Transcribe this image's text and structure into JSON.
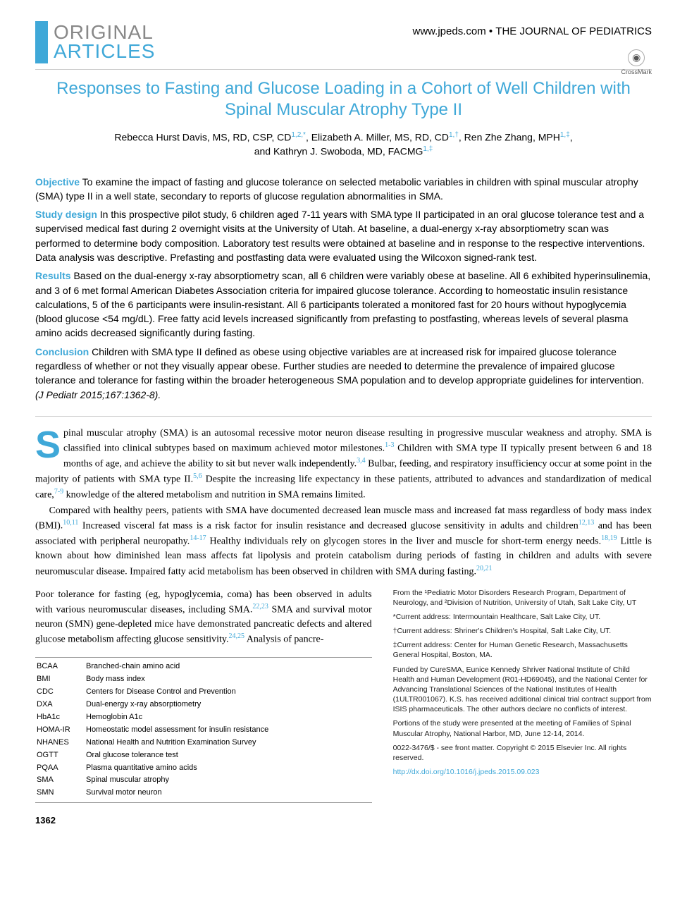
{
  "header": {
    "category_line1": "ORIGINAL",
    "category_line2": "ARTICLES",
    "url": "www.jpeds.com",
    "separator": " • ",
    "journal": "THE JOURNAL OF PEDIATRICS",
    "crossmark": "CrossMark"
  },
  "title": "Responses to Fasting and Glucose Loading in a Cohort of Well Children with Spinal Muscular Atrophy Type II",
  "authors_line1": "Rebecca Hurst Davis, MS, RD, CSP, CD",
  "authors_sup1": "1,2,*",
  "authors_sep1": ", Elizabeth A. Miller, MS, RD, CD",
  "authors_sup2": "1,†",
  "authors_sep2": ", Ren Zhe Zhang, MPH",
  "authors_sup3": "1,‡",
  "authors_sep3": ",",
  "authors_line2": "and Kathryn J. Swoboda, MD, FACMG",
  "authors_sup4": "1,‡",
  "abstract": {
    "objective": {
      "label": "Objective",
      "text": " To examine the impact of fasting and glucose tolerance on selected metabolic variables in children with spinal muscular atrophy (SMA) type II in a well state, secondary to reports of glucose regulation abnormalities in SMA."
    },
    "study_design": {
      "label": "Study design",
      "text": " In this prospective pilot study, 6 children aged 7-11 years with SMA type II participated in an oral glucose tolerance test and a supervised medical fast during 2 overnight visits at the University of Utah. At baseline, a dual-energy x-ray absorptiometry scan was performed to determine body composition. Laboratory test results were obtained at baseline and in response to the respective interventions. Data analysis was descriptive. Prefasting and postfasting data were evaluated using the Wilcoxon signed-rank test."
    },
    "results": {
      "label": "Results",
      "text": " Based on the dual-energy x-ray absorptiometry scan, all 6 children were variably obese at baseline. All 6 exhibited hyperinsulinemia, and 3 of 6 met formal American Diabetes Association criteria for impaired glucose tolerance. According to homeostatic insulin resistance calculations, 5 of the 6 participants were insulin-resistant. All 6 participants tolerated a monitored fast for 20 hours without hypoglycemia (blood glucose <54 mg/dL). Free fatty acid levels increased significantly from prefasting to postfasting, whereas levels of several plasma amino acids decreased significantly during fasting."
    },
    "conclusion": {
      "label": "Conclusion",
      "text": " Children with SMA type II defined as obese using objective variables are at increased risk for impaired glucose tolerance regardless of whether or not they visually appear obese. Further studies are needed to determine the prevalence of impaired glucose tolerance and tolerance for fasting within the broader heterogeneous SMA population and to develop appropriate guidelines for intervention. ",
      "citation": "(J Pediatr 2015;167:1362-8)."
    }
  },
  "body": {
    "dropcap": "S",
    "para1_a": "pinal muscular atrophy (SMA) is an autosomal recessive motor neuron disease resulting in progressive muscular weakness and atrophy. SMA is classified into clinical subtypes based on maximum achieved motor milestones.",
    "para1_sup1": "1-3",
    "para1_b": " Children with SMA type II typically present between 6 and 18 months of age, and achieve the ability to sit but never walk independently.",
    "para1_sup2": "3,4",
    "para1_c": " Bulbar, feeding, and respiratory insufficiency occur at some point in the majority of patients with SMA type II.",
    "para1_sup3": "5,6",
    "para1_d": " Despite the increasing life expectancy in these patients, attributed to advances and standardization of medical care,",
    "para1_sup4": "7-9",
    "para1_e": " knowledge of the altered metabolism and nutrition in SMA remains limited.",
    "para2_a": "Compared with healthy peers, patients with SMA have documented decreased lean muscle mass and increased fat mass regardless of body mass index (BMI).",
    "para2_sup1": "10,11",
    "para2_b": " Increased visceral fat mass is a risk factor for insulin resistance and decreased glucose sensitivity in adults and children",
    "para2_sup2": "12,13",
    "para2_c": " and has been associated with peripheral neuropathy.",
    "para2_sup3": "14-17",
    "para2_d": " Healthy individuals rely on glycogen stores in the liver and muscle for short-term energy needs.",
    "para2_sup4": "18,19",
    "para2_e": " Little is known about how diminished lean mass affects fat lipolysis and protein catabolism during periods of fasting in children and adults with severe neuromuscular disease. Impaired fatty acid metabolism has been observed in children with SMA during fasting.",
    "para2_sup5": "20,21",
    "para3_a": "Poor tolerance for fasting (eg, hypoglycemia, coma) has been observed in adults with various neuromuscular diseases, including SMA.",
    "para3_sup1": "22,23",
    "para3_b": " SMA and survival motor neuron (SMN) gene-depleted mice have demonstrated pancreatic defects and altered glucose metabolism affecting glucose sensitivity.",
    "para3_sup2": "24,25",
    "para3_c": " Analysis of pancre-"
  },
  "abbreviations": [
    {
      "k": "BCAA",
      "v": "Branched-chain amino acid"
    },
    {
      "k": "BMI",
      "v": "Body mass index"
    },
    {
      "k": "CDC",
      "v": "Centers for Disease Control and Prevention"
    },
    {
      "k": "DXA",
      "v": "Dual-energy x-ray absorptiometry"
    },
    {
      "k": "HbA1c",
      "v": "Hemoglobin A1c"
    },
    {
      "k": "HOMA-IR",
      "v": "Homeostatic model assessment for insulin resistance"
    },
    {
      "k": "NHANES",
      "v": "National Health and Nutrition Examination Survey"
    },
    {
      "k": "OGTT",
      "v": "Oral glucose tolerance test"
    },
    {
      "k": "PQAA",
      "v": "Plasma quantitative amino acids"
    },
    {
      "k": "SMA",
      "v": "Spinal muscular atrophy"
    },
    {
      "k": "SMN",
      "v": "Survival motor neuron"
    }
  ],
  "affiliations": {
    "from": "From the ¹Pediatric Motor Disorders Research Program, Department of Neurology, and ²Division of Nutrition, University of Utah, Salt Lake City, UT",
    "star": "*Current address: Intermountain Healthcare, Salt Lake City, UT.",
    "dagger": "†Current address: Shriner's Children's Hospital, Salt Lake City, UT.",
    "ddagger": "‡Current address: Center for Human Genetic Research, Massachusetts General Hospital, Boston, MA.",
    "funding": "Funded by CureSMA, Eunice Kennedy Shriver National Institute of Child Health and Human Development (R01-HD69045), and the National Center for Advancing Translational Sciences of the National Institutes of Health (1ULTR001067). K.S. has received additional clinical trial contract support from ISIS pharmaceuticals. The other authors declare no conflicts of interest.",
    "presented": "Portions of the study were presented at the meeting of Families of Spinal Muscular Atrophy, National Harbor, MD, June 12-14, 2014.",
    "copyright": "0022-3476/$ - see front matter. Copyright © 2015 Elsevier Inc. All rights reserved.",
    "doi": "http://dx.doi.org/10.1016/j.jpeds.2015.09.023"
  },
  "page_number": "1362",
  "colors": {
    "accent": "#3fa8d8",
    "gray": "#888888",
    "text": "#000000"
  }
}
